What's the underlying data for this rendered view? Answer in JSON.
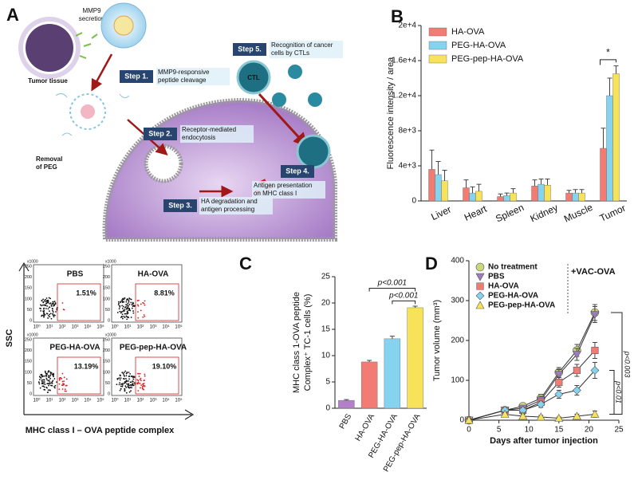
{
  "panel_a": {
    "label": "A",
    "tumor_tissue": "Tumor tissue",
    "mmp9": [
      "MMP9",
      "secretion"
    ],
    "removal": [
      "Removal",
      "of PEG"
    ],
    "ctl": "CTL",
    "steps": [
      {
        "label": "Step 1.",
        "text": [
          "MMP9-responsive",
          "peptide cleavage"
        ]
      },
      {
        "label": "Step 2.",
        "text": [
          "Receptor-mediated",
          "endocytosis"
        ]
      },
      {
        "label": "Step 3.",
        "text": [
          "HA degradation and",
          "antigen processing"
        ]
      },
      {
        "label": "Step 4.",
        "text": [
          "Antigen presentation",
          "on MHC class I"
        ]
      },
      {
        "label": "Step 5.",
        "text": [
          "Recognition of cancer",
          "cells by CTLs"
        ]
      }
    ]
  },
  "panel_c_flow": {
    "ylabel": "SSC",
    "xlabel": "MHC class I – OVA peptide complex",
    "multiplier": "x1000",
    "yticks": [
      "250",
      "200",
      "150",
      "100",
      "50",
      "0"
    ],
    "xticks": [
      "10⁰",
      "10¹",
      "10²",
      "10³",
      "10⁴",
      "10⁵"
    ],
    "plots": [
      {
        "name": "PBS",
        "percent": "1.51%"
      },
      {
        "name": "HA-OVA",
        "percent": "8.81%"
      },
      {
        "name": "PEG-HA-OVA",
        "percent": "13.19%"
      },
      {
        "name": "PEG-pep-HA-OVA",
        "percent": "19.10%"
      }
    ]
  },
  "chart_data": [
    {
      "panel": "B",
      "type": "bar",
      "ylabel": "Fluorescence intensity / area",
      "categories": [
        "Liver",
        "Heart",
        "Spleen",
        "Kidney",
        "Muscle",
        "Tumor"
      ],
      "series": [
        {
          "name": "HA-OVA",
          "color": "#f27c74",
          "values": [
            3600,
            1500,
            500,
            1700,
            900,
            6000
          ],
          "errors": [
            2200,
            900,
            300,
            700,
            300,
            2300
          ]
        },
        {
          "name": "PEG-HA-OVA",
          "color": "#86d3f0",
          "values": [
            3000,
            900,
            600,
            1900,
            900,
            12000
          ],
          "errors": [
            1500,
            700,
            300,
            600,
            400,
            2000
          ]
        },
        {
          "name": "PEG-pep-HA-OVA",
          "color": "#f7e25a",
          "values": [
            2300,
            1100,
            900,
            1800,
            900,
            14500
          ],
          "errors": [
            1200,
            800,
            500,
            700,
            400,
            900
          ]
        }
      ],
      "ylim": [
        0,
        20000
      ],
      "yticks": [
        0,
        {
          "value": 4000,
          "label": "4e+3"
        },
        {
          "value": 8000,
          "label": "8e+3"
        },
        {
          "value": 12000,
          "label": "1.2e+4"
        },
        {
          "value": 16000,
          "label": "1.6e+4"
        },
        {
          "value": 20000,
          "label": "2e+4"
        }
      ],
      "legend": "upper left",
      "annotations": [
        "*"
      ]
    },
    {
      "panel": "C",
      "type": "bar",
      "ylabel": [
        "MHC class 1-OVA peptide",
        "Complex⁺ TC-1 cells (%)"
      ],
      "categories": [
        "PBS",
        "HA-OVA",
        "PEG-HA-OVA",
        "PEG-pep-HA-OVA"
      ],
      "values": [
        1.5,
        8.8,
        13.2,
        19.1
      ],
      "errors": [
        0.15,
        0.3,
        0.5,
        0.3
      ],
      "colors": [
        "#b27fc8",
        "#f27c74",
        "#86d3f0",
        "#f7e25a"
      ],
      "ylim": [
        0,
        25
      ],
      "yticks": [
        0,
        5,
        10,
        15,
        20,
        25
      ],
      "annotations": [
        "p<0.001",
        "p<0.001"
      ]
    },
    {
      "panel": "D",
      "type": "line",
      "xlabel": "Days after tumor injection",
      "ylabel": "Tumor volume (mm³)",
      "x": [
        0,
        6,
        9,
        12,
        15,
        18,
        21
      ],
      "series": [
        {
          "name": "No treatment",
          "color": "#c9d97a",
          "marker": "circle",
          "values": [
            0,
            25,
            35,
            55,
            120,
            175,
            270
          ],
          "errors": [
            3,
            6,
            6,
            10,
            12,
            15,
            20
          ]
        },
        {
          "name": "PBS",
          "color": "#9c7cc0",
          "marker": "triangle-down",
          "values": [
            0,
            25,
            30,
            50,
            115,
            165,
            265
          ],
          "errors": [
            3,
            6,
            6,
            10,
            12,
            15,
            20
          ]
        },
        {
          "name": "HA-OVA",
          "color": "#f27c74",
          "marker": "square",
          "values": [
            0,
            25,
            25,
            45,
            95,
            125,
            175
          ],
          "errors": [
            3,
            6,
            6,
            8,
            12,
            15,
            20
          ]
        },
        {
          "name": "PEG-HA-OVA",
          "color": "#86d3f0",
          "marker": "diamond",
          "values": [
            0,
            25,
            25,
            40,
            65,
            75,
            125
          ],
          "errors": [
            3,
            6,
            6,
            8,
            10,
            12,
            20
          ]
        },
        {
          "name": "PEG-pep-HA-OVA",
          "color": "#f7e25a",
          "marker": "triangle",
          "values": [
            0,
            15,
            10,
            8,
            5,
            10,
            15
          ],
          "errors": [
            3,
            5,
            5,
            4,
            3,
            5,
            8
          ]
        }
      ],
      "xlim": [
        0,
        25
      ],
      "xticks": [
        0,
        5,
        10,
        15,
        20,
        25
      ],
      "ylim": [
        0,
        400
      ],
      "yticks": [
        0,
        100,
        200,
        300,
        400
      ],
      "legend": "upper left",
      "annotations": [
        "+VAC-OVA",
        "p<0.003",
        "p<0.01"
      ]
    }
  ]
}
